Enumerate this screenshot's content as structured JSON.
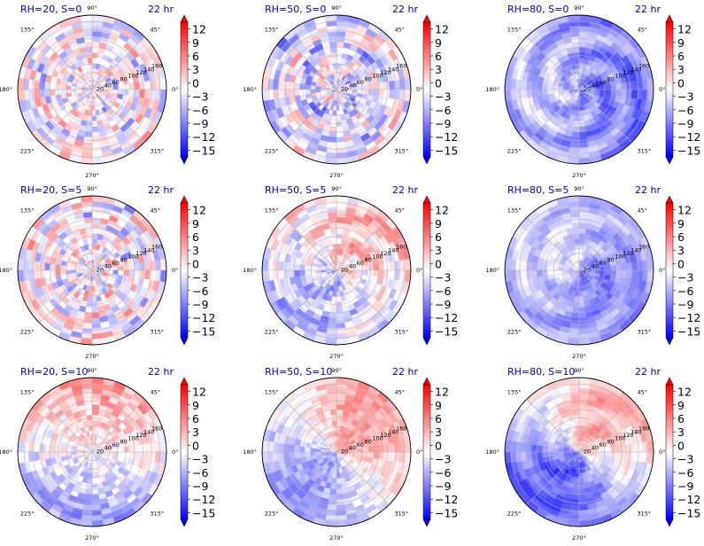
{
  "chart_data": {
    "type": "heatmap",
    "projection": "polar",
    "time_label": "22 hr",
    "angle_ticks": [
      "0°",
      "45°",
      "90°",
      "135°",
      "180°",
      "225°",
      "270°",
      "315°"
    ],
    "radius_ticks": [
      "20",
      "40",
      "60",
      "80",
      "100",
      "120",
      "140",
      "160"
    ],
    "colorbar": {
      "ticks": [
        "12",
        "9",
        "6",
        "3",
        "0",
        "−3",
        "−6",
        "−9",
        "−12",
        "−15"
      ],
      "range": [
        -15,
        15
      ],
      "extend": "both",
      "colormap": "bwr"
    },
    "panels": [
      {
        "title": "RH=20, S=0",
        "time": "22 hr"
      },
      {
        "title": "RH=50, S=0",
        "time": "22 hr"
      },
      {
        "title": "RH=80, S=0",
        "time": "22 hr"
      },
      {
        "title": "RH=20, S=5",
        "time": "22 hr"
      },
      {
        "title": "RH=50, S=5",
        "time": "22 hr"
      },
      {
        "title": "RH=80, S=5",
        "time": "22 hr"
      },
      {
        "title": "RH=20, S=10",
        "time": "22 hr"
      },
      {
        "title": "RH=50, S=10",
        "time": "22 hr"
      },
      {
        "title": "RH=80, S=10",
        "time": "22 hr"
      }
    ]
  },
  "colors": {
    "title_color": "#0000cc",
    "positive": "#ff0000",
    "zero": "#ffffff",
    "negative": "#0000ff",
    "grid": "#b4b4b4"
  }
}
